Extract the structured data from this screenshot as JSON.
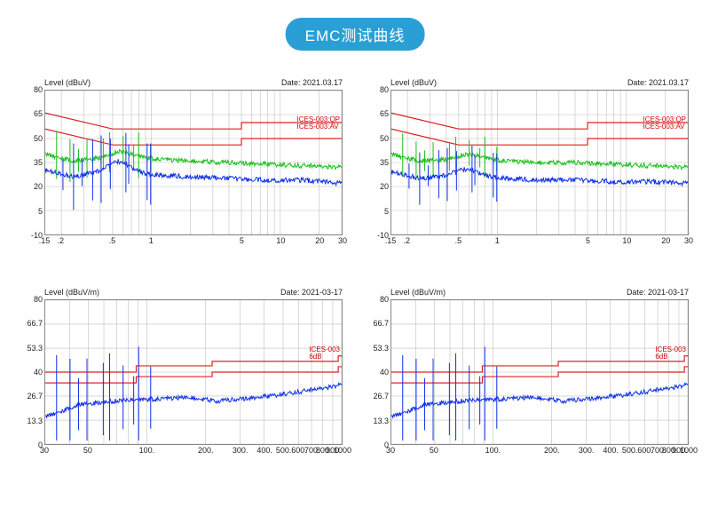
{
  "title": "EMC测试曲线",
  "colors": {
    "badge_bg": "#2a9fd6",
    "badge_text": "#ffffff",
    "axis": "#888888",
    "grid": "#bfbfbf",
    "limit_line": "#e02020",
    "trace_green": "#18c018",
    "trace_blue": "#1030e8",
    "text": "#222222"
  },
  "panels": [
    {
      "y_label": "Level (dBuV)",
      "date": "Date: 2021.03.17",
      "x_scale": "log",
      "x_min": 0.15,
      "x_max": 30,
      "y_min": -10,
      "y_max": 80,
      "y_ticks": [
        -10,
        5,
        20,
        35,
        50,
        65,
        80
      ],
      "x_ticks": [
        ".15",
        ".2",
        ".5",
        "1",
        "5",
        "10",
        "20",
        "30"
      ],
      "x_tick_vals": [
        0.15,
        0.2,
        0.5,
        1,
        5,
        10,
        20,
        30
      ],
      "x_gridlines": [
        0.2,
        0.3,
        0.4,
        0.5,
        0.6,
        0.7,
        0.8,
        0.9,
        1,
        2,
        3,
        4,
        5,
        6,
        7,
        8,
        9,
        10,
        20,
        30
      ],
      "limits": [
        {
          "label": "ICES-003:QP",
          "points": [
            [
              0.15,
              66
            ],
            [
              0.5,
              56
            ],
            [
              5,
              56
            ],
            [
              5,
              60
            ],
            [
              30,
              60
            ]
          ]
        },
        {
          "label": "ICES-003:AV",
          "points": [
            [
              0.15,
              56
            ],
            [
              0.5,
              46
            ],
            [
              5,
              46
            ],
            [
              5,
              50
            ],
            [
              30,
              50
            ]
          ]
        }
      ],
      "legend_top_pct": 18,
      "traces": [
        {
          "color": "trace_green",
          "noise_amp": 3,
          "spike_amp": 10,
          "base": [
            [
              0.15,
              40
            ],
            [
              0.25,
              36
            ],
            [
              0.4,
              38
            ],
            [
              0.55,
              42
            ],
            [
              0.7,
              40
            ],
            [
              0.9,
              38
            ],
            [
              1.2,
              37
            ],
            [
              2,
              36
            ],
            [
              4,
              35
            ],
            [
              8,
              34
            ],
            [
              15,
              33
            ],
            [
              30,
              32
            ]
          ]
        },
        {
          "color": "trace_blue",
          "noise_amp": 3,
          "spike_amp": 14,
          "base": [
            [
              0.15,
              30
            ],
            [
              0.25,
              26
            ],
            [
              0.4,
              30
            ],
            [
              0.55,
              36
            ],
            [
              0.7,
              32
            ],
            [
              0.9,
              28
            ],
            [
              1.2,
              27
            ],
            [
              2,
              26
            ],
            [
              4,
              25
            ],
            [
              8,
              24
            ],
            [
              15,
              24
            ],
            [
              30,
              22
            ]
          ]
        }
      ]
    },
    {
      "y_label": "Level (dBuV)",
      "date": "Date: 2021.03.17",
      "x_scale": "log",
      "x_min": 0.15,
      "x_max": 30,
      "y_min": -10,
      "y_max": 80,
      "y_ticks": [
        -10,
        5,
        20,
        35,
        50,
        65,
        80
      ],
      "x_ticks": [
        ".15",
        ".2",
        ".5",
        "1",
        "5",
        "10",
        "20",
        "30"
      ],
      "x_tick_vals": [
        0.15,
        0.2,
        0.5,
        1,
        5,
        10,
        20,
        30
      ],
      "x_gridlines": [
        0.2,
        0.3,
        0.4,
        0.5,
        0.6,
        0.7,
        0.8,
        0.9,
        1,
        2,
        3,
        4,
        5,
        6,
        7,
        8,
        9,
        10,
        20,
        30
      ],
      "limits": [
        {
          "label": "ICES-003:QP",
          "points": [
            [
              0.15,
              66
            ],
            [
              0.5,
              56
            ],
            [
              5,
              56
            ],
            [
              5,
              60
            ],
            [
              30,
              60
            ]
          ]
        },
        {
          "label": "ICES-003:AV",
          "points": [
            [
              0.15,
              56
            ],
            [
              0.5,
              46
            ],
            [
              5,
              46
            ],
            [
              5,
              50
            ],
            [
              30,
              50
            ]
          ]
        }
      ],
      "legend_top_pct": 18,
      "traces": [
        {
          "color": "trace_green",
          "noise_amp": 3,
          "spike_amp": 9,
          "base": [
            [
              0.15,
              40
            ],
            [
              0.25,
              36
            ],
            [
              0.4,
              37
            ],
            [
              0.55,
              40
            ],
            [
              0.7,
              39
            ],
            [
              0.9,
              37
            ],
            [
              1.2,
              36
            ],
            [
              2,
              35
            ],
            [
              4,
              35
            ],
            [
              8,
              34
            ],
            [
              15,
              33
            ],
            [
              30,
              32
            ]
          ]
        },
        {
          "color": "trace_blue",
          "noise_amp": 3,
          "spike_amp": 11,
          "base": [
            [
              0.15,
              29
            ],
            [
              0.25,
              25
            ],
            [
              0.4,
              27
            ],
            [
              0.55,
              31
            ],
            [
              0.7,
              29
            ],
            [
              0.9,
              26
            ],
            [
              1.2,
              25
            ],
            [
              2,
              24
            ],
            [
              4,
              24
            ],
            [
              8,
              23
            ],
            [
              15,
              23
            ],
            [
              30,
              22
            ]
          ]
        }
      ]
    },
    {
      "y_label": "Level (dBuV/m)",
      "date": "Date: 2021-03-17",
      "x_scale": "log",
      "x_min": 30,
      "x_max": 1000,
      "y_min": 0,
      "y_max": 80,
      "y_ticks": [
        0,
        13.3,
        26.7,
        40,
        53.3,
        66.7,
        80
      ],
      "x_ticks": [
        "30",
        "50",
        "100.",
        "200.",
        "300.",
        "400.",
        "500.",
        "600.",
        "700.",
        "800.",
        "900.",
        "1000"
      ],
      "x_tick_vals": [
        30,
        50,
        100,
        200,
        300,
        400,
        500,
        600,
        700,
        800,
        900,
        1000
      ],
      "x_gridlines": [
        40,
        50,
        60,
        70,
        80,
        90,
        100,
        200,
        300,
        400,
        500,
        600,
        700,
        800,
        900,
        1000
      ],
      "limits": [
        {
          "label": "ICES-003",
          "points": [
            [
              30,
              40
            ],
            [
              88,
              40
            ],
            [
              88,
              43.5
            ],
            [
              216,
              43.5
            ],
            [
              216,
              46
            ],
            [
              960,
              46
            ],
            [
              960,
              49
            ],
            [
              1000,
              49
            ]
          ]
        },
        {
          "label": "6dB",
          "points": [
            [
              30,
              34
            ],
            [
              88,
              34
            ],
            [
              88,
              37.5
            ],
            [
              216,
              37.5
            ],
            [
              216,
              40
            ],
            [
              960,
              40
            ],
            [
              960,
              43
            ],
            [
              1000,
              43
            ]
          ]
        }
      ],
      "legend_top_pct": 32,
      "traces": [
        {
          "color": "trace_blue",
          "noise_amp": 2.5,
          "spike_amp": 20,
          "spike_region": [
            30,
            230
          ],
          "base": [
            [
              30,
              15
            ],
            [
              45,
              22
            ],
            [
              70,
              24
            ],
            [
              110,
              25
            ],
            [
              160,
              26
            ],
            [
              230,
              24
            ],
            [
              300,
              25
            ],
            [
              450,
              27
            ],
            [
              600,
              29
            ],
            [
              800,
              31
            ],
            [
              1000,
              33
            ]
          ]
        }
      ]
    },
    {
      "y_label": "Level (dBuV/m)",
      "date": "Date: 2021-03-17",
      "x_scale": "log",
      "x_min": 30,
      "x_max": 1000,
      "y_min": 0,
      "y_max": 80,
      "y_ticks": [
        0,
        13.3,
        26.7,
        40,
        53.3,
        66.7,
        80
      ],
      "x_ticks": [
        "30",
        "50",
        "100.",
        "200.",
        "300.",
        "400.",
        "500.",
        "600.",
        "700.",
        "800.",
        "900.",
        "1000"
      ],
      "x_tick_vals": [
        30,
        50,
        100,
        200,
        300,
        400,
        500,
        600,
        700,
        800,
        900,
        1000
      ],
      "x_gridlines": [
        40,
        50,
        60,
        70,
        80,
        90,
        100,
        200,
        300,
        400,
        500,
        600,
        700,
        800,
        900,
        1000
      ],
      "limits": [
        {
          "label": "ICES-003",
          "points": [
            [
              30,
              40
            ],
            [
              88,
              40
            ],
            [
              88,
              43.5
            ],
            [
              216,
              43.5
            ],
            [
              216,
              46
            ],
            [
              960,
              46
            ],
            [
              960,
              49
            ],
            [
              1000,
              49
            ]
          ]
        },
        {
          "label": "6dB",
          "points": [
            [
              30,
              34
            ],
            [
              88,
              34
            ],
            [
              88,
              37.5
            ],
            [
              216,
              37.5
            ],
            [
              216,
              40
            ],
            [
              960,
              40
            ],
            [
              960,
              43
            ],
            [
              1000,
              43
            ]
          ]
        }
      ],
      "legend_top_pct": 32,
      "traces": [
        {
          "color": "trace_blue",
          "noise_amp": 2.5,
          "spike_amp": 20,
          "spike_region": [
            30,
            230
          ],
          "base": [
            [
              30,
              15
            ],
            [
              45,
              22
            ],
            [
              70,
              24
            ],
            [
              110,
              25
            ],
            [
              160,
              26
            ],
            [
              230,
              24
            ],
            [
              300,
              25
            ],
            [
              450,
              27
            ],
            [
              600,
              29
            ],
            [
              800,
              31
            ],
            [
              1000,
              33
            ]
          ]
        }
      ]
    }
  ]
}
